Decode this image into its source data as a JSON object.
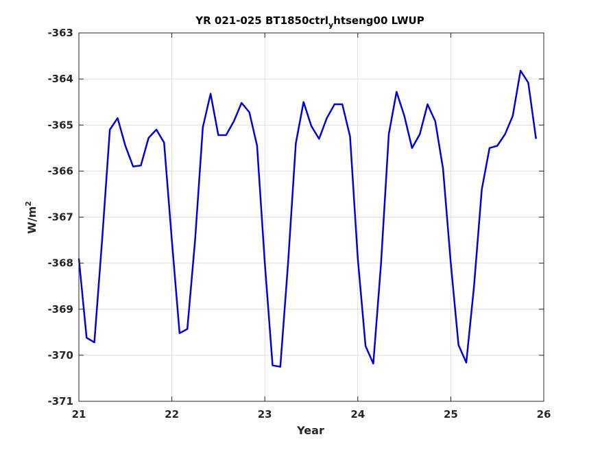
{
  "chart_data": {
    "type": "line",
    "title": {
      "prefix": "YR 021-025 BT1850ctrl",
      "subscript": "y",
      "suffix": "htseng00 LWUP"
    },
    "xlabel": "Year",
    "ylabel": {
      "base": "W/m",
      "superscript": "2"
    },
    "xlim": [
      21,
      26
    ],
    "ylim": [
      -371,
      -363
    ],
    "xticks": [
      21,
      22,
      23,
      24,
      25,
      26
    ],
    "yticks": [
      -371,
      -370,
      -369,
      -368,
      -367,
      -366,
      -365,
      -364,
      -363
    ],
    "xtick_labels": [
      "21",
      "22",
      "23",
      "24",
      "25",
      "26"
    ],
    "ytick_labels": [
      "-371",
      "-370",
      "-369",
      "-368",
      "-367",
      "-366",
      "-365",
      "-364",
      "-363"
    ],
    "grid": true,
    "line_color": "#0000dd",
    "series": [
      {
        "x": [
          21.0,
          21.083,
          21.167,
          21.25,
          21.333,
          21.417,
          21.5,
          21.583,
          21.667,
          21.75,
          21.833,
          21.917,
          22.0,
          22.083,
          22.167,
          22.25,
          22.333,
          22.417,
          22.5,
          22.583,
          22.667,
          22.75,
          22.833,
          22.917,
          23.0,
          23.083,
          23.167,
          23.25,
          23.333,
          23.417,
          23.5,
          23.583,
          23.667,
          23.75,
          23.833,
          23.917,
          24.0,
          24.083,
          24.167,
          24.25,
          24.333,
          24.417,
          24.5,
          24.583,
          24.667,
          24.75,
          24.833,
          24.917,
          25.0,
          25.083,
          25.167,
          25.25,
          25.333,
          25.417,
          25.5,
          25.583,
          25.667,
          25.75,
          25.833,
          25.917
        ],
        "y": [
          -367.9,
          -369.62,
          -369.72,
          -367.5,
          -365.1,
          -364.85,
          -365.45,
          -365.9,
          -365.88,
          -365.28,
          -365.1,
          -365.38,
          -367.5,
          -369.52,
          -369.43,
          -367.5,
          -365.05,
          -364.32,
          -365.22,
          -365.22,
          -364.92,
          -364.52,
          -364.72,
          -365.45,
          -368.0,
          -370.22,
          -370.25,
          -368.0,
          -365.4,
          -364.5,
          -365.02,
          -365.3,
          -364.85,
          -364.55,
          -364.55,
          -365.25,
          -367.9,
          -369.8,
          -370.18,
          -368.0,
          -365.2,
          -364.28,
          -364.8,
          -365.5,
          -365.2,
          -364.55,
          -364.92,
          -365.95,
          -368.0,
          -369.78,
          -370.16,
          -368.5,
          -366.4,
          -365.5,
          -365.45,
          -365.2,
          -364.8,
          -363.82,
          -364.08,
          -365.3
        ]
      }
    ]
  }
}
